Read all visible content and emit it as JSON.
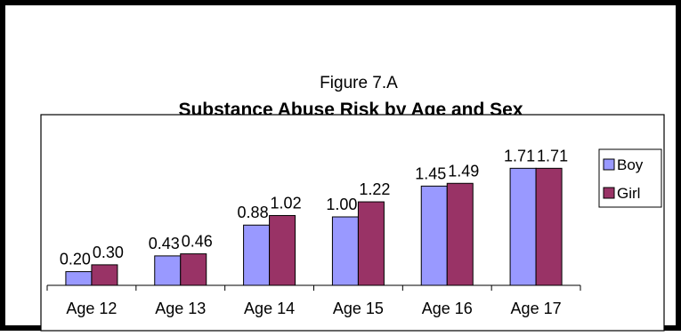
{
  "chart_data": {
    "type": "bar",
    "figure_label": "Figure 7.A",
    "title": "Substance Abuse Risk by Age and Sex",
    "categories": [
      "Age 12",
      "Age 13",
      "Age 14",
      "Age 15",
      "Age 16",
      "Age 17"
    ],
    "series": [
      {
        "name": "Boy",
        "color": "#9999ff",
        "values": [
          0.2,
          0.43,
          0.88,
          1.0,
          1.45,
          1.71
        ],
        "labels": [
          "0.20",
          "0.43",
          "0.88",
          "1.00",
          "1.45",
          "1.71"
        ]
      },
      {
        "name": "Girl",
        "color": "#993366",
        "values": [
          0.3,
          0.46,
          1.02,
          1.22,
          1.49,
          1.71
        ],
        "labels": [
          "0.30",
          "0.46",
          "1.02",
          "1.22",
          "1.49",
          "1.71"
        ]
      }
    ],
    "ylim": [
      0,
      2.2
    ],
    "grid": false,
    "legend_position": "right"
  }
}
